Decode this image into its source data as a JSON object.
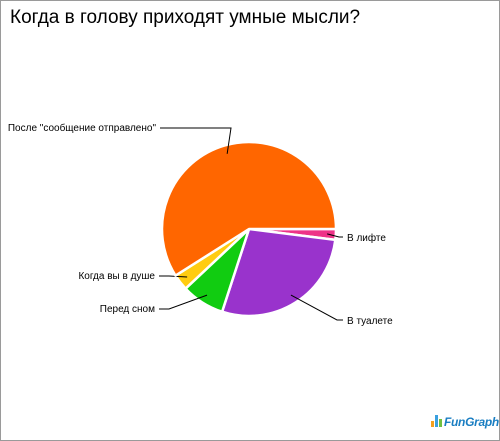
{
  "chart_data": {
    "type": "pie",
    "title": "Когда в голову приходят умные мысли?",
    "slices": [
      {
        "label": "В лифте",
        "value": 2,
        "color": "#ee3388"
      },
      {
        "label": "В туалете",
        "value": 28,
        "color": "#9933cc"
      },
      {
        "label": "Перед сном",
        "value": 8,
        "color": "#11cc11"
      },
      {
        "label": "Когда вы в душе",
        "value": 3,
        "color": "#ffcc11"
      },
      {
        "label": "После \"сообщение отправлено\"",
        "value": 59,
        "color": "#ff6600"
      }
    ]
  },
  "logo": {
    "text": "FunGraph",
    "colors": [
      "#f4a020",
      "#3aa0e0",
      "#70c040"
    ]
  }
}
